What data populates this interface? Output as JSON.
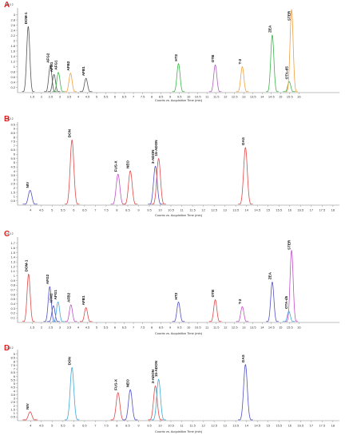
{
  "chart_data": [
    {
      "panel": "A",
      "type": "line",
      "y_multiplier": "x10 2",
      "xlabel": "Counts vs. Acquisition Time (min)",
      "xlim": [
        0.7,
        18.2
      ],
      "ylim": [
        0,
        3.2
      ],
      "x_ticks": [
        "1.5",
        "2",
        "2.5",
        "3",
        "3.5",
        "4",
        "4.5",
        "5",
        "5.5",
        "6",
        "6.5",
        "7",
        "7.5",
        "8",
        "8.5",
        "9",
        "9.5",
        "10",
        "10.5",
        "11",
        "11.5",
        "12",
        "12.5",
        "13",
        "13.5",
        "14",
        "14.5",
        "15",
        "15.5",
        "16"
      ],
      "y_ticks": [
        "0.2",
        "0.4",
        "0.6",
        "0.8",
        "1",
        "1.2",
        "1.4",
        "1.6",
        "1.8",
        "2",
        "2.2",
        "2.4",
        "2.6",
        "2.8",
        "3"
      ],
      "peaks": [
        {
          "label": "DOM-1",
          "time": 1.28,
          "height": 2.55,
          "color": "#555555"
        },
        {
          "label": "AFG2",
          "time": 2.48,
          "height": 1.05,
          "color": "#555555"
        },
        {
          "label": "AFM1",
          "time": 2.68,
          "height": 0.7,
          "color": "#555555"
        },
        {
          "label": "AFG1",
          "time": 2.92,
          "height": 0.78,
          "color": "#3bb54a"
        },
        {
          "label": "AFB2",
          "time": 3.58,
          "height": 0.75,
          "color": "#f0a040"
        },
        {
          "label": "AFB1",
          "time": 4.42,
          "height": 0.55,
          "color": "#555555"
        },
        {
          "label": "HT2",
          "time": 9.45,
          "height": 1.12,
          "color": "#3bb54a"
        },
        {
          "label": "OTB",
          "time": 11.45,
          "height": 1.07,
          "color": "#b060c0"
        },
        {
          "label": "T-2",
          "time": 12.92,
          "height": 1.0,
          "color": "#f0a040"
        },
        {
          "label": "ZEA",
          "time": 14.55,
          "height": 2.22,
          "color": "#3bb54a"
        },
        {
          "label": "OTA-d5",
          "time": 15.47,
          "height": 0.42,
          "color": "#3bb54a"
        },
        {
          "label": "STER",
          "time": 15.6,
          "height": 3.2,
          "color": "#f0a040"
        }
      ]
    },
    {
      "panel": "B",
      "type": "line",
      "y_multiplier": "x10 2",
      "xlabel": "Counts vs. Acquisition Time (min)",
      "xlim": [
        3.4,
        18.3
      ],
      "ylim": [
        0,
        9.6
      ],
      "x_ticks": [
        "4",
        "4.5",
        "5",
        "5.5",
        "6",
        "6.5",
        "7",
        "7.5",
        "8",
        "8.5",
        "9",
        "9.5",
        "10",
        "10.5",
        "11",
        "11.5",
        "12",
        "12.5",
        "13",
        "13.5",
        "14",
        "14.5",
        "15",
        "15.5",
        "16",
        "16.5",
        "17",
        "17.5",
        "18"
      ],
      "y_ticks": [
        "0.5",
        "1",
        "1.5",
        "2",
        "2.5",
        "3",
        "3.5",
        "4",
        "4.5",
        "5",
        "5.5",
        "6",
        "6.5",
        "7",
        "7.5",
        "8",
        "8.5",
        "9",
        "9.5"
      ],
      "peaks": [
        {
          "label": "NIV",
          "time": 3.98,
          "height": 1.75,
          "color": "#5050c8"
        },
        {
          "label": "DON",
          "time": 5.92,
          "height": 7.7,
          "color": "#e04848"
        },
        {
          "label": "FUS-X",
          "time": 8.05,
          "height": 3.65,
          "color": "#c050c8"
        },
        {
          "label": "NEO",
          "time": 8.62,
          "height": 4.05,
          "color": "#e04848"
        },
        {
          "label": "3-ADON",
          "time": 9.78,
          "height": 4.6,
          "color": "#5050c8"
        },
        {
          "label": "15-ADON",
          "time": 9.93,
          "height": 5.5,
          "color": "#e04848"
        },
        {
          "label": "DAS",
          "time": 13.95,
          "height": 6.8,
          "color": "#e04848"
        }
      ]
    },
    {
      "panel": "C",
      "type": "line",
      "y_multiplier": "x10 2",
      "xlabel": "Counts vs. Acquisition Time (min)",
      "xlim": [
        0.7,
        18.2
      ],
      "ylim": [
        0,
        1.8
      ],
      "x_ticks": [
        "1.5",
        "2",
        "2.5",
        "3",
        "3.5",
        "4",
        "4.5",
        "5",
        "5.5",
        "6",
        "6.5",
        "7",
        "7.5",
        "8",
        "8.5",
        "9",
        "9.5",
        "10",
        "10.5",
        "11",
        "11.5",
        "12",
        "12.5",
        "13",
        "13.5",
        "14",
        "14.5",
        "15",
        "15.5",
        "16"
      ],
      "y_ticks": [
        "0.1",
        "0.2",
        "0.3",
        "0.4",
        "0.5",
        "0.6",
        "0.7",
        "0.8",
        "0.9",
        "1",
        "1.1",
        "1.2",
        "1.3",
        "1.4",
        "1.5",
        "1.6",
        "1.7"
      ],
      "peaks": [
        {
          "label": "DOM-1",
          "time": 1.3,
          "height": 1.04,
          "color": "#e04848"
        },
        {
          "label": "AFG2",
          "time": 2.45,
          "height": 0.77,
          "color": "#5050c8"
        },
        {
          "label": "AFM1",
          "time": 2.65,
          "height": 0.36,
          "color": "#5050c8"
        },
        {
          "label": "AFG1",
          "time": 2.9,
          "height": 0.44,
          "color": "#40a8d8"
        },
        {
          "label": "AFB2",
          "time": 3.6,
          "height": 0.38,
          "color": "#c050c8"
        },
        {
          "label": "AFB1",
          "time": 4.42,
          "height": 0.32,
          "color": "#e04848"
        },
        {
          "label": "HT2",
          "time": 9.45,
          "height": 0.44,
          "color": "#5050c8"
        },
        {
          "label": "OTB",
          "time": 11.45,
          "height": 0.49,
          "color": "#e04848"
        },
        {
          "label": "T-2",
          "time": 12.92,
          "height": 0.34,
          "color": "#c050c8"
        },
        {
          "label": "ZEA",
          "time": 14.55,
          "height": 0.87,
          "color": "#5050c8"
        },
        {
          "label": "OTA-d5",
          "time": 15.45,
          "height": 0.24,
          "color": "#40a8d8"
        },
        {
          "label": "STER",
          "time": 15.6,
          "height": 1.55,
          "color": "#c050c8"
        }
      ]
    },
    {
      "panel": "D",
      "type": "line",
      "y_multiplier": "x10 2",
      "xlabel": "Counts vs. Acquisition Time (min)",
      "xlim": [
        3.4,
        18.3
      ],
      "ylim": [
        0,
        9.4
      ],
      "x_ticks": [
        "4",
        "4.5",
        "5",
        "5.5",
        "6",
        "6.5",
        "7",
        "7.5",
        "8",
        "8.5",
        "9",
        "9.5",
        "10",
        "10.5",
        "11",
        "11.5",
        "12",
        "12.5",
        "13",
        "13.5",
        "14",
        "14.5",
        "15",
        "15.5",
        "16",
        "16.5",
        "17",
        "17.5",
        "18"
      ],
      "y_ticks": [
        "0.5",
        "1",
        "1.5",
        "2",
        "2.5",
        "3",
        "3.5",
        "4",
        "4.5",
        "5",
        "5.5",
        "6",
        "6.5",
        "7",
        "7.5",
        "8",
        "8.5",
        "9"
      ],
      "peaks": [
        {
          "label": "NIV",
          "time": 3.98,
          "height": 1.2,
          "color": "#e04848"
        },
        {
          "label": "DON",
          "time": 5.92,
          "height": 7.2,
          "color": "#40a8d8"
        },
        {
          "label": "FUS-X",
          "time": 8.05,
          "height": 3.8,
          "color": "#e04848"
        },
        {
          "label": "NEO",
          "time": 8.62,
          "height": 4.2,
          "color": "#5050c8"
        },
        {
          "label": "3-ADON",
          "time": 9.78,
          "height": 4.7,
          "color": "#e04848"
        },
        {
          "label": "15-ADON",
          "time": 9.93,
          "height": 5.6,
          "color": "#40a8d8"
        },
        {
          "label": "DAS",
          "time": 13.95,
          "height": 7.6,
          "color": "#5050c8"
        }
      ]
    }
  ]
}
